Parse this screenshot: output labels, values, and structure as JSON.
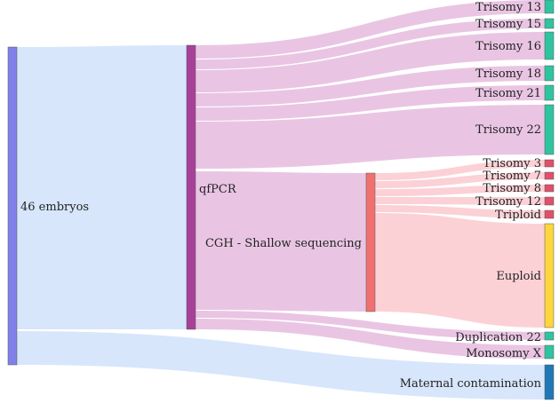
{
  "nodes": {
    "embryos": {
      "label": "46 embryos",
      "color": "#8080e8"
    },
    "qfpcr": {
      "label": "qfPCR",
      "color": "#a8409a"
    },
    "cgh": {
      "label": "CGH - Shallow sequencing",
      "color": "#f07070"
    },
    "t13": {
      "label": "Trisomy 13",
      "color": "#2ec4a0"
    },
    "t15": {
      "label": "Trisomy 15",
      "color": "#2ec4a0"
    },
    "t16": {
      "label": "Trisomy 16",
      "color": "#2ec4a0"
    },
    "t18": {
      "label": "Trisomy 18",
      "color": "#2ec4a0"
    },
    "t21": {
      "label": "Trisomy 21",
      "color": "#2ec4a0"
    },
    "t22": {
      "label": "Trisomy 22",
      "color": "#2ec4a0"
    },
    "t3": {
      "label": "Trisomy 3",
      "color": "#e0506a"
    },
    "t7": {
      "label": "Trisomy 7",
      "color": "#e0506a"
    },
    "t8": {
      "label": "Trisomy 8",
      "color": "#e0506a"
    },
    "t12": {
      "label": "Trisomy 12",
      "color": "#e0506a"
    },
    "triploid": {
      "label": "Triploid",
      "color": "#e0506a"
    },
    "euploid": {
      "label": "Euploid",
      "color": "#fcd63c"
    },
    "dup22": {
      "label": "Duplication 22",
      "color": "#2ec4a0"
    },
    "monox": {
      "label": "Monosomy X",
      "color": "#2ec4a0"
    },
    "maternal": {
      "label": "Maternal contamination",
      "color": "#1f78b4"
    }
  },
  "link_colors": {
    "embryos": "#d5e5fb",
    "qfpcr": "#e8c2e2",
    "cgh": "#fbcfd4"
  }
}
